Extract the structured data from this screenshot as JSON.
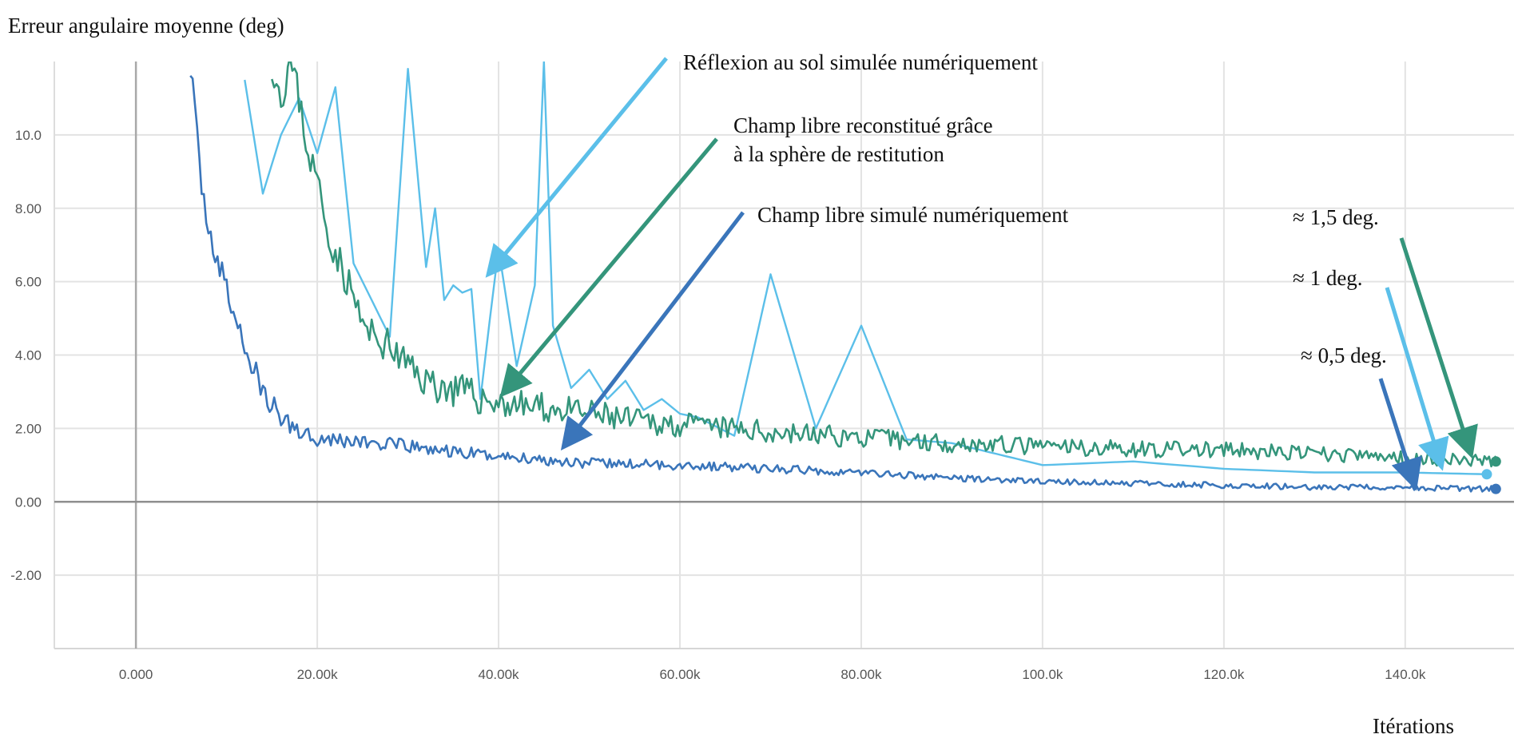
{
  "chart_data": {
    "type": "line",
    "ylabel": "Erreur angulaire moyenne (deg)",
    "xlabel": "Itérations",
    "xlim": [
      -9000,
      152000
    ],
    "ylim": [
      -4,
      12
    ],
    "x_ticks": [
      0,
      20000,
      40000,
      60000,
      80000,
      100000,
      120000,
      140000
    ],
    "x_tick_labels": [
      "0.000",
      "20.00k",
      "40.00k",
      "60.00k",
      "80.00k",
      "100.0k",
      "120.0k",
      "140.0k"
    ],
    "y_ticks": [
      -2,
      0,
      2,
      4,
      6,
      8,
      10
    ],
    "y_tick_labels": [
      "-2.00",
      "0.00",
      "2.00",
      "4.00",
      "6.00",
      "8.00",
      "10.0"
    ],
    "grid": true,
    "series": [
      {
        "color": "#5bbfe9",
        "x": [
          12000,
          14000,
          16000,
          18000,
          20000,
          22000,
          24000,
          26000,
          28000,
          30000,
          32000,
          33000,
          34000,
          35000,
          36000,
          37000,
          38000,
          39000,
          40000,
          42000,
          44000,
          45000,
          46000,
          48000,
          50000,
          52000,
          54000,
          56000,
          58000,
          60000,
          62000,
          66000,
          70000,
          75000,
          80000,
          85000,
          90000,
          95000,
          100000,
          110000,
          120000,
          130000,
          140000,
          149000
        ],
        "y": [
          11.5,
          8.4,
          10.0,
          11.0,
          9.5,
          11.3,
          6.5,
          5.5,
          4.5,
          11.8,
          6.4,
          8.0,
          5.5,
          5.9,
          5.7,
          5.8,
          2.8,
          4.9,
          6.9,
          3.7,
          5.9,
          12.0,
          4.8,
          3.1,
          3.6,
          2.8,
          3.3,
          2.5,
          2.8,
          2.4,
          2.3,
          1.8,
          6.2,
          2.0,
          4.8,
          1.7,
          1.6,
          1.3,
          1.0,
          1.1,
          0.9,
          0.8,
          0.8,
          0.75
        ]
      },
      {
        "color": "#34957b",
        "x": [
          15000,
          16000,
          17000,
          18000,
          19000,
          20000,
          21000,
          22000,
          23000,
          24000,
          25000,
          26000,
          27000,
          28000,
          30000,
          32000,
          34000,
          36000,
          38000,
          40000,
          45000,
          50000,
          55000,
          60000,
          70000,
          80000,
          90000,
          100000,
          110000,
          120000,
          130000,
          140000,
          150000
        ],
        "y": [
          12.0,
          11.0,
          12.0,
          11.0,
          9.5,
          8.8,
          7.5,
          6.8,
          6.2,
          5.6,
          4.8,
          4.5,
          4.4,
          4.2,
          3.7,
          3.3,
          3.1,
          3.0,
          2.8,
          2.7,
          2.55,
          2.4,
          2.2,
          2.1,
          1.9,
          1.75,
          1.6,
          1.5,
          1.45,
          1.4,
          1.3,
          1.2,
          1.1
        ]
      },
      {
        "color": "#3a75ba",
        "x": [
          6000,
          6500,
          7000,
          7500,
          8000,
          8500,
          9000,
          10000,
          11000,
          12000,
          13000,
          14000,
          15000,
          16000,
          17000,
          18000,
          19000,
          20000,
          22000,
          24000,
          26000,
          28000,
          30000,
          35000,
          40000,
          45000,
          50000,
          60000,
          70000,
          80000,
          90000,
          100000,
          110000,
          120000,
          130000,
          140000,
          150000
        ],
        "y": [
          12.0,
          10.5,
          9.2,
          8.2,
          7.6,
          7.0,
          6.5,
          5.8,
          5.0,
          4.2,
          3.6,
          3.0,
          2.6,
          2.3,
          2.1,
          1.95,
          1.85,
          1.75,
          1.7,
          1.65,
          1.6,
          1.55,
          1.5,
          1.35,
          1.25,
          1.15,
          1.05,
          1.0,
          0.9,
          0.8,
          0.65,
          0.55,
          0.5,
          0.45,
          0.4,
          0.38,
          0.35
        ]
      }
    ],
    "annotations": [
      {
        "text": "Réflexion au sol simulée numériquement",
        "color": "#5bbfe9"
      },
      {
        "text": "Champ libre reconstitué grâce",
        "text2": "à la sphère de restitution",
        "color": "#34957b"
      },
      {
        "text": "Champ libre simulé numériquement",
        "color": "#3a75ba"
      },
      {
        "text": "≈ 1,5 deg.",
        "color": "#34957b"
      },
      {
        "text": "≈ 1 deg.",
        "color": "#5bbfe9"
      },
      {
        "text": "≈ 0,5 deg.",
        "color": "#3a75ba"
      }
    ]
  }
}
